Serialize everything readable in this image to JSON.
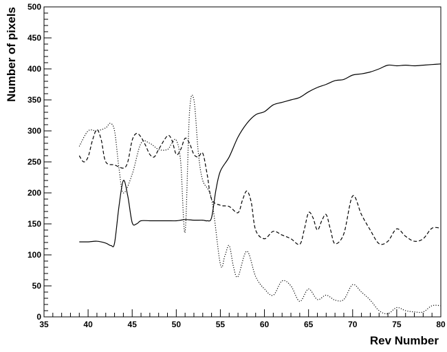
{
  "chart_data": {
    "type": "line",
    "title": "",
    "xlabel": "Rev Number",
    "ylabel": "Number of pixels",
    "xlim": [
      35,
      80
    ],
    "ylim": [
      0,
      500
    ],
    "xticks": [
      35,
      40,
      45,
      50,
      55,
      60,
      65,
      70,
      75,
      80
    ],
    "yticks": [
      0,
      50,
      100,
      150,
      200,
      250,
      300,
      350,
      400,
      450,
      500
    ],
    "grid": false,
    "legend": "none",
    "series": [
      {
        "style": "solid",
        "points": [
          [
            39,
            121
          ],
          [
            40,
            121
          ],
          [
            41,
            122
          ],
          [
            42,
            119
          ],
          [
            42.6,
            115
          ],
          [
            43,
            119
          ],
          [
            43.5,
            178
          ],
          [
            44,
            220
          ],
          [
            44.5,
            195
          ],
          [
            45,
            152
          ],
          [
            45.5,
            150
          ],
          [
            46,
            155
          ],
          [
            47,
            155
          ],
          [
            48,
            155
          ],
          [
            49,
            155
          ],
          [
            50,
            155
          ],
          [
            50.5,
            156
          ],
          [
            51,
            157
          ],
          [
            52,
            156
          ],
          [
            53,
            156
          ],
          [
            53.5,
            155
          ],
          [
            54,
            160
          ],
          [
            54.5,
            205
          ],
          [
            55,
            235
          ],
          [
            56,
            258
          ],
          [
            57,
            290
          ],
          [
            58,
            312
          ],
          [
            59,
            326
          ],
          [
            60,
            331
          ],
          [
            61,
            342
          ],
          [
            62,
            346
          ],
          [
            63,
            350
          ],
          [
            64,
            354
          ],
          [
            65,
            363
          ],
          [
            66,
            370
          ],
          [
            67,
            375
          ],
          [
            68,
            381
          ],
          [
            69,
            383
          ],
          [
            70,
            390
          ],
          [
            71,
            392
          ],
          [
            72,
            395
          ],
          [
            73,
            400
          ],
          [
            74,
            406
          ],
          [
            75,
            405
          ],
          [
            76,
            406
          ],
          [
            77,
            405
          ],
          [
            78,
            406
          ],
          [
            79,
            407
          ],
          [
            80,
            408
          ]
        ]
      },
      {
        "style": "dashed",
        "points": [
          [
            39,
            260
          ],
          [
            39.5,
            250
          ],
          [
            40,
            258
          ],
          [
            40.5,
            285
          ],
          [
            41,
            302
          ],
          [
            41.5,
            285
          ],
          [
            42,
            250
          ],
          [
            43,
            245
          ],
          [
            44,
            240
          ],
          [
            44.5,
            250
          ],
          [
            45,
            285
          ],
          [
            45.5,
            296
          ],
          [
            46,
            290
          ],
          [
            46.5,
            277
          ],
          [
            47,
            262
          ],
          [
            47.5,
            258
          ],
          [
            48,
            270
          ],
          [
            49,
            292
          ],
          [
            49.5,
            285
          ],
          [
            50,
            262
          ],
          [
            50.5,
            270
          ],
          [
            51,
            288
          ],
          [
            51.5,
            280
          ],
          [
            52,
            262
          ],
          [
            52.5,
            258
          ],
          [
            53,
            264
          ],
          [
            53.5,
            230
          ],
          [
            54,
            190
          ],
          [
            55,
            180
          ],
          [
            56,
            178
          ],
          [
            57,
            168
          ],
          [
            57.5,
            188
          ],
          [
            58,
            203
          ],
          [
            58.5,
            185
          ],
          [
            59,
            140
          ],
          [
            60,
            126
          ],
          [
            61,
            138
          ],
          [
            62,
            132
          ],
          [
            63,
            126
          ],
          [
            64,
            117
          ],
          [
            64.5,
            140
          ],
          [
            65,
            168
          ],
          [
            65.5,
            160
          ],
          [
            66,
            140
          ],
          [
            66.5,
            155
          ],
          [
            67,
            165
          ],
          [
            67.5,
            140
          ],
          [
            68,
            118
          ],
          [
            69,
            134
          ],
          [
            70,
            195
          ],
          [
            71,
            165
          ],
          [
            72,
            140
          ],
          [
            73,
            118
          ],
          [
            74,
            122
          ],
          [
            75,
            142
          ],
          [
            76,
            130
          ],
          [
            77,
            122
          ],
          [
            78,
            126
          ],
          [
            79,
            143
          ],
          [
            80,
            143
          ]
        ]
      },
      {
        "style": "dotted",
        "points": [
          [
            39,
            275
          ],
          [
            40,
            300
          ],
          [
            41,
            300
          ],
          [
            42,
            305
          ],
          [
            42.5,
            312
          ],
          [
            43,
            300
          ],
          [
            43.5,
            240
          ],
          [
            44,
            200
          ],
          [
            45,
            230
          ],
          [
            46,
            280
          ],
          [
            47,
            280
          ],
          [
            48,
            270
          ],
          [
            49,
            270
          ],
          [
            49.5,
            280
          ],
          [
            50,
            285
          ],
          [
            50.5,
            250
          ],
          [
            51,
            137
          ],
          [
            51.5,
            330
          ],
          [
            52,
            350
          ],
          [
            52.5,
            265
          ],
          [
            53,
            220
          ],
          [
            54,
            190
          ],
          [
            55,
            85
          ],
          [
            55.5,
            98
          ],
          [
            56,
            115
          ],
          [
            56.5,
            80
          ],
          [
            57,
            65
          ],
          [
            58,
            106
          ],
          [
            59,
            65
          ],
          [
            60,
            45
          ],
          [
            61,
            35
          ],
          [
            62,
            58
          ],
          [
            63,
            50
          ],
          [
            64,
            25
          ],
          [
            65,
            45
          ],
          [
            66,
            28
          ],
          [
            67,
            35
          ],
          [
            68,
            27
          ],
          [
            69,
            28
          ],
          [
            70,
            52
          ],
          [
            71,
            40
          ],
          [
            72,
            27
          ],
          [
            73,
            10
          ],
          [
            74,
            5
          ],
          [
            75,
            15
          ],
          [
            76,
            10
          ],
          [
            77,
            8
          ],
          [
            78,
            8
          ],
          [
            79,
            18
          ],
          [
            80,
            18
          ]
        ]
      }
    ]
  }
}
